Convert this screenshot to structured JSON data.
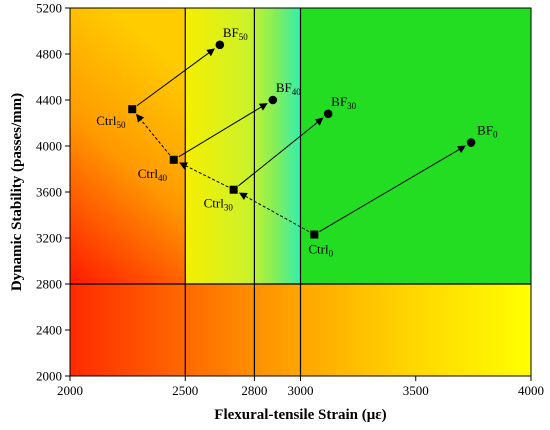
{
  "chart_data": {
    "type": "scatter",
    "title": "",
    "xlabel": "Flexural-tensile Strain (με)",
    "ylabel": "Dynamic Stability (passes/mm)",
    "xlim": [
      2000,
      4000
    ],
    "ylim": [
      2000,
      5200
    ],
    "xticks": [
      2000,
      2500,
      2800,
      3000,
      3500,
      4000
    ],
    "yticks": [
      2000,
      2400,
      2800,
      3200,
      3600,
      4000,
      4400,
      4800,
      5200
    ],
    "reference_lines": {
      "x": [
        2500,
        2800,
        3000
      ],
      "y": [
        2800
      ]
    },
    "series": [
      {
        "marker": "square",
        "points": [
          {
            "base": "Ctrl",
            "sub": "50",
            "x": 2270,
            "y": 4320
          },
          {
            "base": "Ctrl",
            "sub": "40",
            "x": 2450,
            "y": 3880
          },
          {
            "base": "Ctrl",
            "sub": "30",
            "x": 2710,
            "y": 3620
          },
          {
            "base": "Ctrl",
            "sub": "0",
            "x": 3060,
            "y": 3230
          }
        ]
      },
      {
        "marker": "circle",
        "points": [
          {
            "base": "BF",
            "sub": "50",
            "x": 2650,
            "y": 4880
          },
          {
            "base": "BF",
            "sub": "40",
            "x": 2880,
            "y": 4400
          },
          {
            "base": "BF",
            "sub": "30",
            "x": 3120,
            "y": 4280
          },
          {
            "base": "BF",
            "sub": "0",
            "x": 3740,
            "y": 4030
          }
        ]
      }
    ],
    "arrows": [
      {
        "from": [
          2270,
          4320
        ],
        "to": [
          2650,
          4880
        ],
        "style": "solid"
      },
      {
        "from": [
          2450,
          3880
        ],
        "to": [
          2880,
          4400
        ],
        "style": "solid"
      },
      {
        "from": [
          2710,
          3620
        ],
        "to": [
          3120,
          4280
        ],
        "style": "solid"
      },
      {
        "from": [
          3060,
          3230
        ],
        "to": [
          3740,
          4030
        ],
        "style": "solid"
      },
      {
        "from": [
          3060,
          3230
        ],
        "to": [
          2710,
          3620
        ],
        "style": "dashed"
      },
      {
        "from": [
          2710,
          3620
        ],
        "to": [
          2450,
          3880
        ],
        "style": "dashed"
      },
      {
        "from": [
          2450,
          3880
        ],
        "to": [
          2270,
          4320
        ],
        "style": "dashed"
      }
    ],
    "colors": {
      "red": "#ff1a00",
      "orange": "#ff9a00",
      "yellow": "#ffff00",
      "green": "#22dd22",
      "light_green": "#a8ef3c",
      "cyan": "#33eeb0",
      "marker": "#000000"
    }
  }
}
